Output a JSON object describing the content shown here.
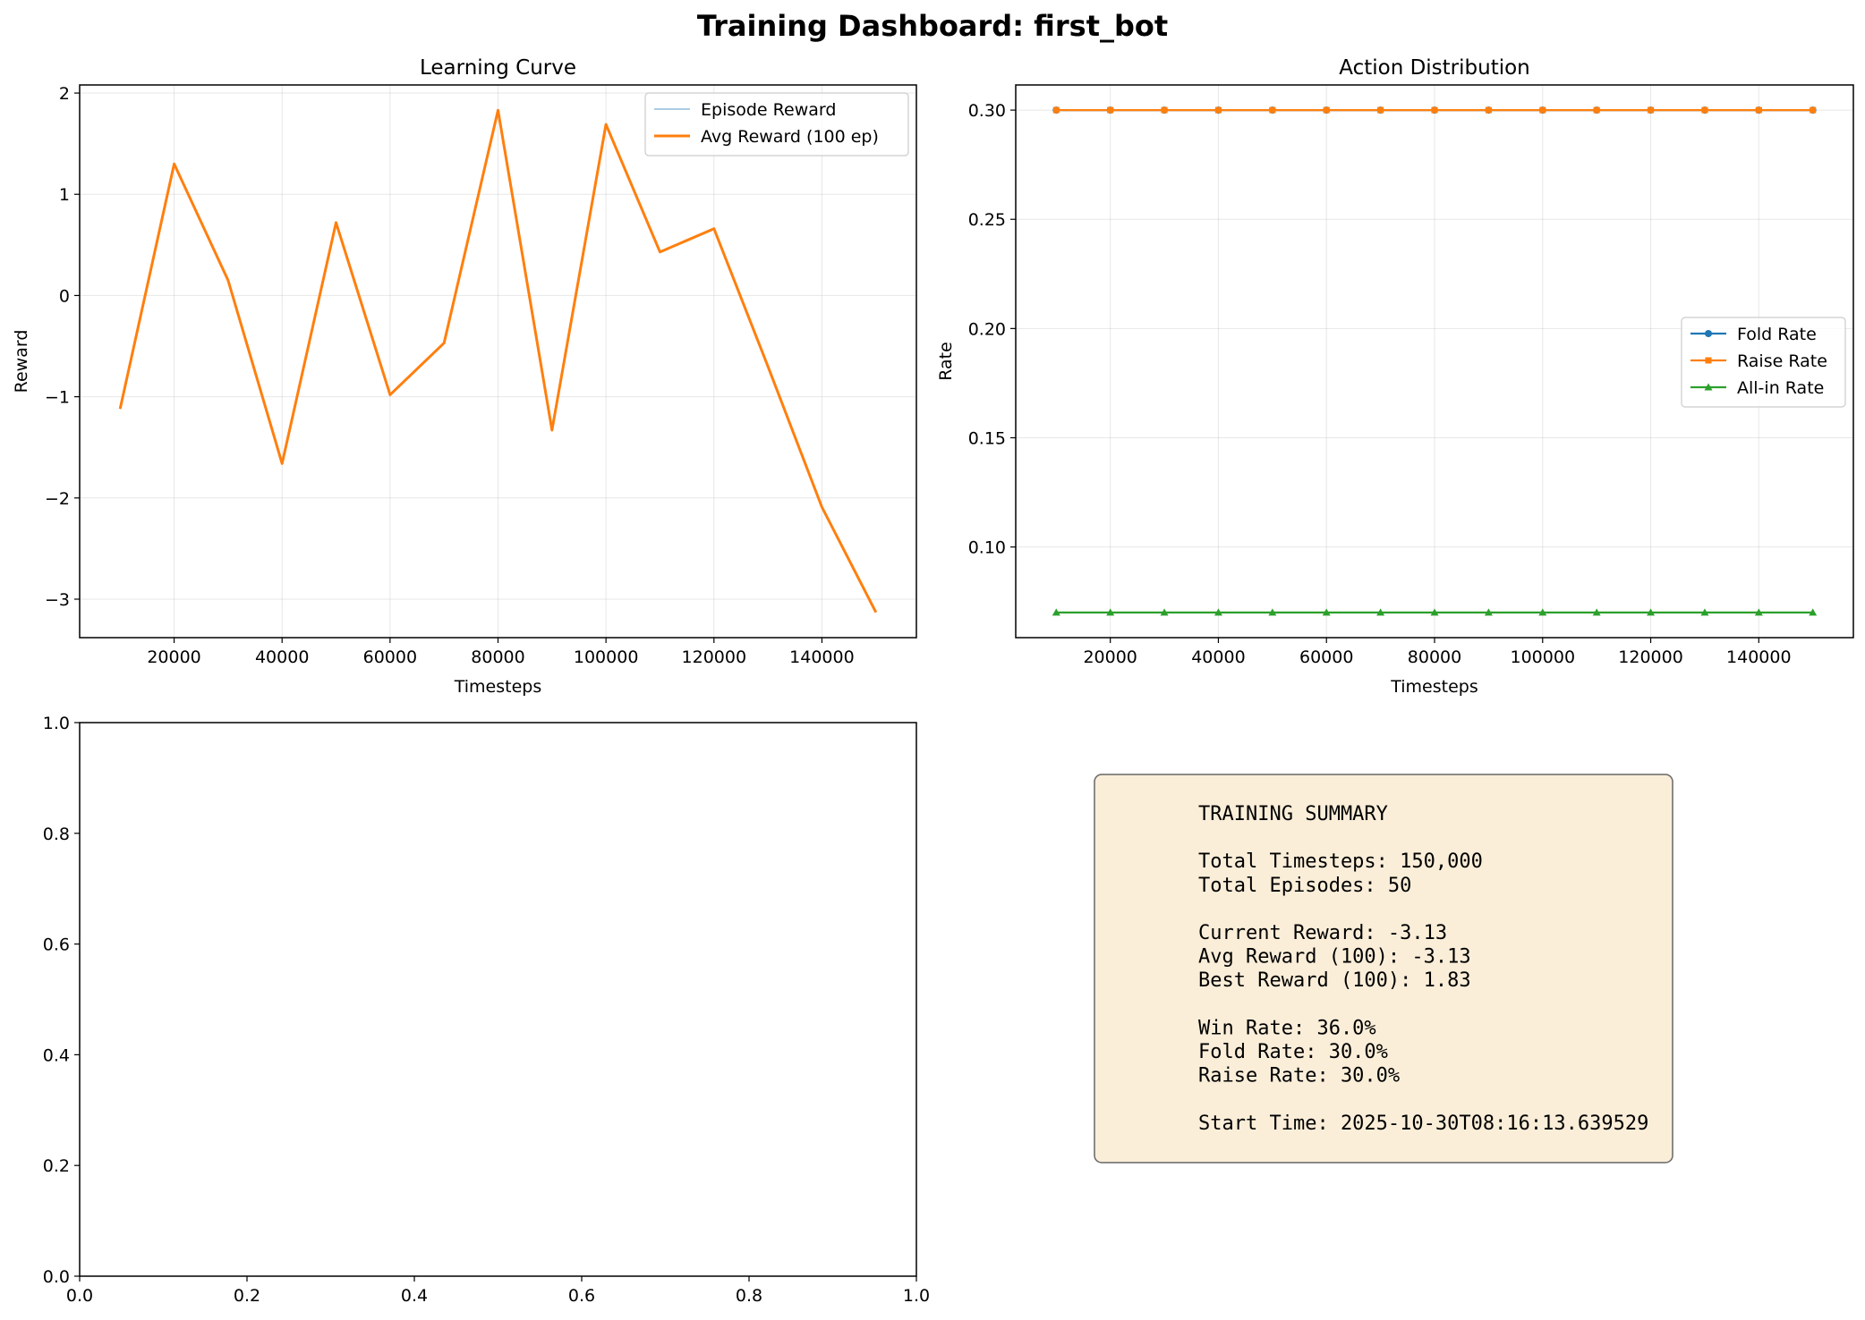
{
  "figure": {
    "suptitle": "Training Dashboard: first_bot"
  },
  "chart_data": [
    {
      "type": "line",
      "title": "Learning Curve",
      "xlabel": "Timesteps",
      "ylabel": "Reward",
      "xlim": [
        2500,
        157500
      ],
      "ylim": [
        -3.38,
        2.08
      ],
      "xticks": [
        20000,
        40000,
        60000,
        80000,
        100000,
        120000,
        140000
      ],
      "yticks": [
        -3,
        -2,
        -1,
        0,
        1,
        2
      ],
      "grid": true,
      "legend": "upper right",
      "x": [
        10000,
        20000,
        30000,
        40000,
        50000,
        60000,
        70000,
        80000,
        90000,
        100000,
        110000,
        120000,
        130000,
        140000,
        150000
      ],
      "series": [
        {
          "name": "Episode Reward",
          "color": "#1f77b4",
          "alpha": 0.5,
          "width": 1.5,
          "values": [
            -1.12,
            1.3,
            0.15,
            -1.66,
            0.72,
            -0.98,
            -0.47,
            1.83,
            -1.33,
            1.69,
            0.43,
            0.66,
            -0.7,
            -2.09,
            -3.13
          ]
        },
        {
          "name": "Avg Reward (100 ep)",
          "color": "#ff7f0e",
          "alpha": 1,
          "width": 3,
          "values": [
            -1.12,
            1.3,
            0.15,
            -1.66,
            0.72,
            -0.98,
            -0.47,
            1.83,
            -1.33,
            1.69,
            0.43,
            0.66,
            -0.7,
            -2.09,
            -3.13
          ]
        }
      ]
    },
    {
      "type": "line",
      "title": "Action Distribution",
      "xlabel": "Timesteps",
      "ylabel": "Rate",
      "xlim": [
        2500,
        157500
      ],
      "ylim": [
        0.0585,
        0.3115
      ],
      "xticks": [
        20000,
        40000,
        60000,
        80000,
        100000,
        120000,
        140000
      ],
      "yticks": [
        0.1,
        0.15,
        0.2,
        0.25,
        0.3
      ],
      "grid": true,
      "legend": "center right",
      "x": [
        10000,
        20000,
        30000,
        40000,
        50000,
        60000,
        70000,
        80000,
        90000,
        100000,
        110000,
        120000,
        130000,
        140000,
        150000
      ],
      "series": [
        {
          "name": "Fold Rate",
          "color": "#1f77b4",
          "marker": "circle",
          "values": [
            0.3,
            0.3,
            0.3,
            0.3,
            0.3,
            0.3,
            0.3,
            0.3,
            0.3,
            0.3,
            0.3,
            0.3,
            0.3,
            0.3,
            0.3
          ]
        },
        {
          "name": "Raise Rate",
          "color": "#ff7f0e",
          "marker": "square",
          "values": [
            0.3,
            0.3,
            0.3,
            0.3,
            0.3,
            0.3,
            0.3,
            0.3,
            0.3,
            0.3,
            0.3,
            0.3,
            0.3,
            0.3,
            0.3
          ]
        },
        {
          "name": "All-in Rate",
          "color": "#2ca02c",
          "marker": "triangle",
          "values": [
            0.07,
            0.07,
            0.07,
            0.07,
            0.07,
            0.07,
            0.07,
            0.07,
            0.07,
            0.07,
            0.07,
            0.07,
            0.07,
            0.07,
            0.07
          ]
        }
      ]
    },
    {
      "type": "line",
      "title": "",
      "xlabel": "",
      "ylabel": "",
      "xlim": [
        0,
        1
      ],
      "ylim": [
        0,
        1
      ],
      "xticks": [
        0.0,
        0.2,
        0.4,
        0.6,
        0.8,
        1.0
      ],
      "yticks": [
        0.0,
        0.2,
        0.4,
        0.6,
        0.8,
        1.0
      ],
      "grid": false,
      "series": []
    }
  ],
  "summary": {
    "lines": [
      "TRAINING SUMMARY",
      "",
      "Total Timesteps: 150,000",
      "Total Episodes: 50",
      "",
      "Current Reward: -3.13",
      "Avg Reward (100): -3.13",
      "Best Reward (100): 1.83",
      "",
      "Win Rate: 36.0%",
      "Fold Rate: 30.0%",
      "Raise Rate: 30.0%",
      "",
      "Start Time: 2025-10-30T08:16:13.639529"
    ],
    "box_color": "#f5deb3"
  }
}
